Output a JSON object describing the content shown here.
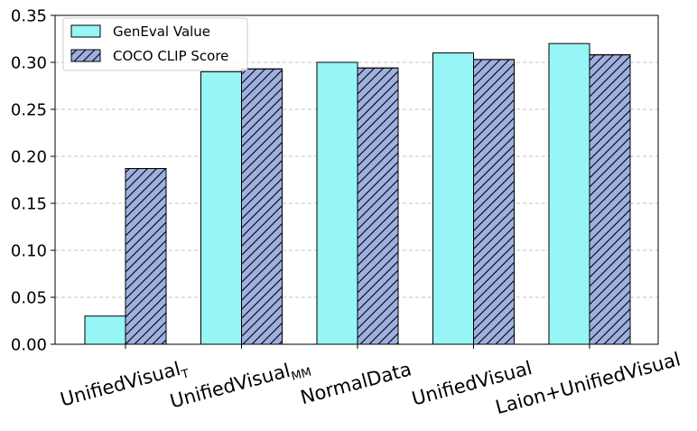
{
  "chart_data": {
    "type": "bar",
    "categories": [
      {
        "base": "UnifiedVisual",
        "sub": "T"
      },
      {
        "base": "UnifiedVisual",
        "sub": "MM"
      },
      {
        "base": "NormalData",
        "sub": ""
      },
      {
        "base": "UnifiedVisual",
        "sub": ""
      },
      {
        "base": "Laion+UnifiedVisual",
        "sub": ""
      }
    ],
    "series": [
      {
        "name": "GenEval Value",
        "values": [
          0.03,
          0.29,
          0.3,
          0.31,
          0.32
        ],
        "color": "#96f5f5",
        "pattern": "solid"
      },
      {
        "name": "COCO CLIP Score",
        "values": [
          0.187,
          0.293,
          0.294,
          0.303,
          0.308
        ],
        "color": "#9eafe0",
        "pattern": "hatch"
      }
    ],
    "ylim": [
      0,
      0.35
    ],
    "yticks": [
      "0.00",
      "0.05",
      "0.10",
      "0.15",
      "0.20",
      "0.25",
      "0.30",
      "0.35"
    ],
    "grid": "horizontal-dashed",
    "legend_position": "top-left",
    "xtick_rotation_deg": -15
  }
}
